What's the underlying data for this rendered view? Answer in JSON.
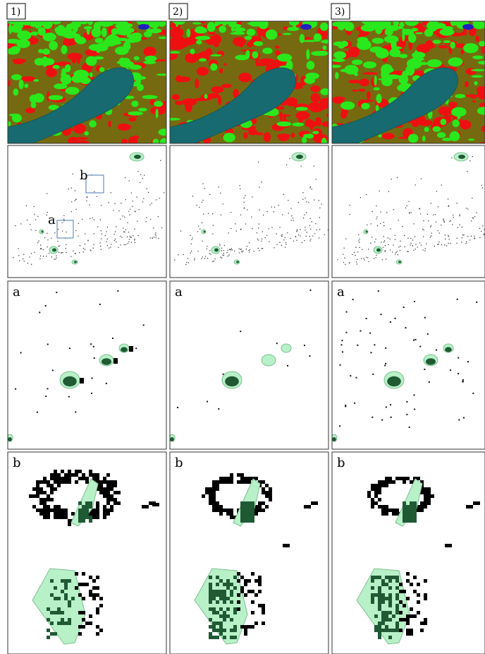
{
  "column_labels": [
    "1)",
    "2)",
    "3)"
  ],
  "overview_markers": [
    "a",
    "b"
  ],
  "zoom_panel_labels": [
    "a",
    "b"
  ]
}
